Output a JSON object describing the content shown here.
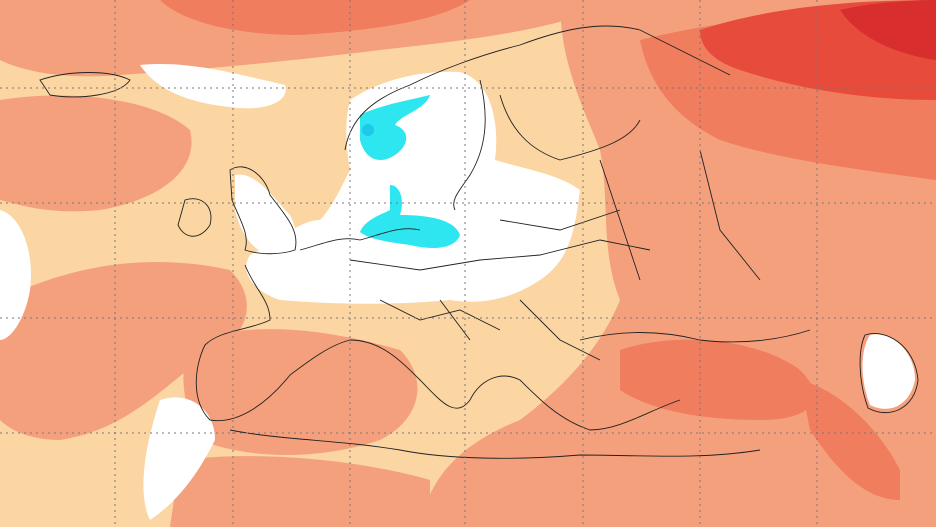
{
  "map": {
    "colors": {
      "background": "#fbd5a2",
      "light_salmon": "#f9b891",
      "salmon": "#f4a07c",
      "dark_salmon": "#ef7d5e",
      "red": "#e64b3b",
      "deep_red": "#d92e2e",
      "neutral": "#ffffff",
      "cyan": "#2ee6f0",
      "cyan_dark": "#1fc8e8",
      "coastline": "#222222",
      "grid": "#777777"
    }
  }
}
